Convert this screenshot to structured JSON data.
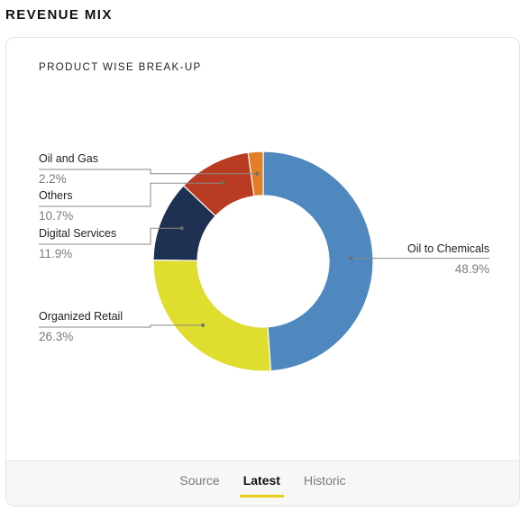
{
  "header": {
    "title": "REVENUE MIX"
  },
  "card": {
    "title": "PRODUCT WISE BREAK-UP"
  },
  "chart_data": {
    "type": "pie",
    "donut": true,
    "title": "PRODUCT WISE BREAK-UP",
    "slices": [
      {
        "label": "Oil to Chemicals",
        "value": 48.9,
        "pct_text": "48.9%",
        "color": "#4f87bf"
      },
      {
        "label": "Organized Retail",
        "value": 26.3,
        "pct_text": "26.3%",
        "color": "#dfdd2d"
      },
      {
        "label": "Digital Services",
        "value": 11.9,
        "pct_text": "11.9%",
        "color": "#1f3152"
      },
      {
        "label": "Others",
        "value": 10.7,
        "pct_text": "10.7%",
        "color": "#b93b22"
      },
      {
        "label": "Oil and Gas",
        "value": 2.2,
        "pct_text": "2.2%",
        "color": "#e07f27"
      }
    ]
  },
  "footer": {
    "tabs": [
      {
        "label": "Source",
        "active": false
      },
      {
        "label": "Latest",
        "active": true
      },
      {
        "label": "Historic",
        "active": false
      }
    ]
  }
}
